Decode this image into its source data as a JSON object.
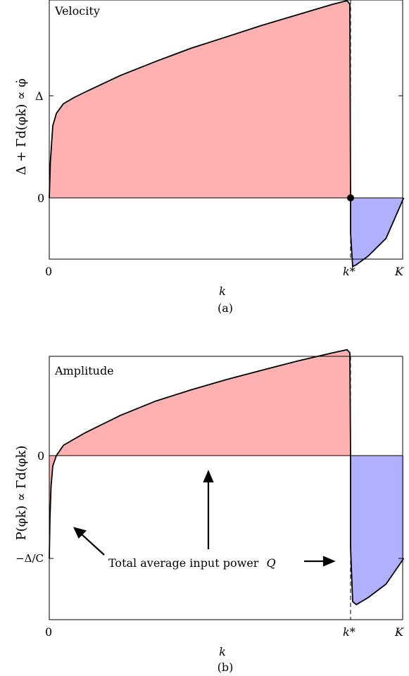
{
  "chart_data": [
    {
      "panel": "(a)",
      "type": "area",
      "annotation": "Velocity",
      "xlabel": "k",
      "ylabel": "Δ + Γd(φk) ∝ φ̇",
      "x_ticks": [
        "0",
        "k*",
        "K"
      ],
      "y_ticks": [
        "0",
        "Δ"
      ],
      "x_range": [
        "0",
        "K"
      ],
      "marker_label": "k*",
      "series_positive": {
        "color": "#ffb0b0",
        "x": [
          0.0,
          0.003,
          0.01,
          0.02,
          0.04,
          0.07,
          0.1,
          0.2,
          0.3,
          0.4,
          0.5,
          0.6,
          0.7,
          0.8,
          0.84,
          0.848,
          0.85
        ],
        "y": [
          0.0,
          0.4,
          0.82,
          0.96,
          1.07,
          1.14,
          1.2,
          1.39,
          1.55,
          1.7,
          1.83,
          1.96,
          2.08,
          2.2,
          2.24,
          2.2,
          0.0
        ]
      },
      "series_negative": {
        "color": "#b0b0ff",
        "x": [
          0.85,
          0.856,
          0.866,
          0.9,
          0.95,
          1.0
        ],
        "y": [
          -0.4,
          -0.78,
          -0.76,
          -0.66,
          -0.46,
          0.0
        ]
      }
    },
    {
      "panel": "(b)",
      "type": "area",
      "annotation": "Amplitude",
      "xlabel": "k",
      "ylabel": "P(φk) ∝ Γd(φk)",
      "x_ticks": [
        "0",
        "k*",
        "K"
      ],
      "y_ticks": [
        "0",
        "−Δ/C"
      ],
      "callout_text": "Total average input power",
      "callout_symbol": "Q",
      "series_positive": {
        "color": "#ffb0b0",
        "x": [
          0.0,
          0.002,
          0.005,
          0.01,
          0.02,
          0.04,
          0.07,
          0.1,
          0.2,
          0.3,
          0.4,
          0.5,
          0.6,
          0.7,
          0.8,
          0.84,
          0.848,
          0.85
        ],
        "y": [
          -1.0,
          -0.6,
          -0.3,
          -0.1,
          0.0,
          0.1,
          0.16,
          0.22,
          0.39,
          0.53,
          0.64,
          0.74,
          0.83,
          0.92,
          1.0,
          1.03,
          1.0,
          0.0
        ]
      },
      "series_negative": {
        "color": "#b0b0ff",
        "x": [
          0.85,
          0.856,
          0.866,
          0.9,
          0.95,
          1.0
        ],
        "y": [
          -0.9,
          -1.42,
          -1.45,
          -1.38,
          -1.25,
          -1.0
        ]
      }
    }
  ]
}
